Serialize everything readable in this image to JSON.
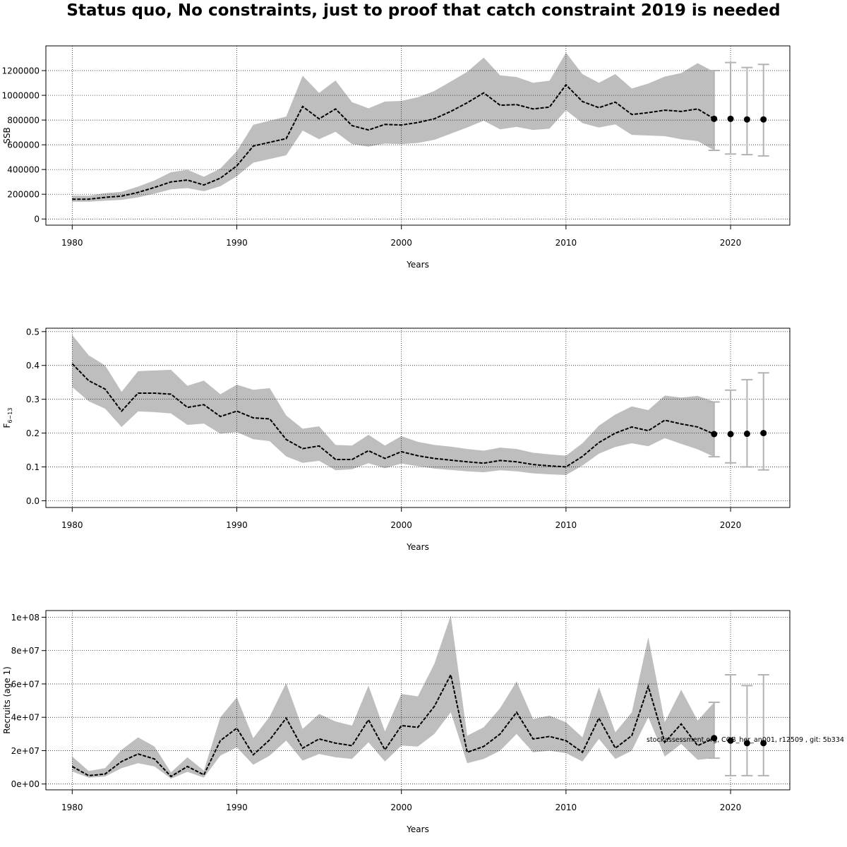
{
  "title": "Status quo, No constraints, just to proof that catch constraint 2019 is needed",
  "colors": {
    "band": "#bebebe",
    "line": "#000000",
    "grid": "#000000",
    "errorbar": "#b3b3b3",
    "point": "#000000"
  },
  "footnote": "stockassessment.org, COB_her_an001, r12509 , git: 5b334",
  "chart_data": [
    {
      "type": "line",
      "xlabel": "Years",
      "ylabel": "SSB",
      "xlim": [
        1978.4,
        2023.6
      ],
      "ylim": [
        -50000,
        1400000
      ],
      "xticks": [
        1980,
        1990,
        2000,
        2010,
        2020
      ],
      "yticks": [
        0,
        200000,
        400000,
        600000,
        800000,
        1000000,
        1200000
      ],
      "ytick_labels": [
        "0",
        "200000",
        "400000",
        "600000",
        "800000",
        "1000000",
        "1200000"
      ],
      "grid": true,
      "x": [
        1980,
        1981,
        1982,
        1983,
        1984,
        1985,
        1986,
        1987,
        1988,
        1989,
        1990,
        1991,
        1992,
        1993,
        1994,
        1995,
        1996,
        1997,
        1998,
        1999,
        2000,
        2001,
        2002,
        2003,
        2004,
        2005,
        2006,
        2007,
        2008,
        2009,
        2010,
        2011,
        2012,
        2013,
        2014,
        2015,
        2016,
        2017,
        2018,
        2019
      ],
      "estimate": [
        160000,
        160000,
        175000,
        185000,
        215000,
        255000,
        300000,
        315000,
        275000,
        330000,
        430000,
        590000,
        620000,
        650000,
        910000,
        810000,
        890000,
        755000,
        720000,
        765000,
        760000,
        780000,
        810000,
        870000,
        940000,
        1020000,
        920000,
        925000,
        890000,
        905000,
        1085000,
        950000,
        900000,
        945000,
        845000,
        860000,
        880000,
        870000,
        890000,
        810000
      ],
      "lower": [
        140000,
        140000,
        148000,
        155000,
        175000,
        205000,
        240000,
        250000,
        225000,
        265000,
        345000,
        455000,
        485000,
        515000,
        715000,
        645000,
        705000,
        605000,
        585000,
        610000,
        605000,
        615000,
        640000,
        690000,
        740000,
        795000,
        725000,
        745000,
        720000,
        730000,
        880000,
        775000,
        740000,
        765000,
        680000,
        675000,
        670000,
        645000,
        630000,
        555000
      ],
      "upper": [
        188000,
        188000,
        208000,
        220000,
        262000,
        312000,
        378000,
        398000,
        342000,
        408000,
        548000,
        762000,
        795000,
        828000,
        1158000,
        1020000,
        1120000,
        945000,
        895000,
        950000,
        955000,
        985000,
        1035000,
        1112000,
        1190000,
        1305000,
        1162000,
        1148000,
        1102000,
        1118000,
        1345000,
        1172000,
        1102000,
        1172000,
        1055000,
        1095000,
        1152000,
        1180000,
        1260000,
        1190000
      ],
      "forecast": {
        "x": [
          2019,
          2020,
          2021,
          2022
        ],
        "median": [
          810000,
          810000,
          805000,
          805000
        ],
        "lower": [
          555000,
          525000,
          520000,
          510000
        ],
        "upper": [
          1200000,
          1265000,
          1225000,
          1250000
        ]
      }
    },
    {
      "type": "line",
      "xlabel": "Years",
      "ylabel": "F",
      "ylabel_sub": "6−13",
      "xlim": [
        1978.4,
        2023.6
      ],
      "ylim": [
        -0.02,
        0.51
      ],
      "xticks": [
        1980,
        1990,
        2000,
        2010,
        2020
      ],
      "yticks": [
        0,
        0.1,
        0.2,
        0.3,
        0.4,
        0.5
      ],
      "ytick_labels": [
        "0.0",
        "0.1",
        "0.2",
        "0.3",
        "0.4",
        "0.5"
      ],
      "grid": true,
      "x": [
        1980,
        1981,
        1982,
        1983,
        1984,
        1985,
        1986,
        1987,
        1988,
        1989,
        1990,
        1991,
        1992,
        1993,
        1994,
        1995,
        1996,
        1997,
        1998,
        1999,
        2000,
        2001,
        2002,
        2003,
        2004,
        2005,
        2006,
        2007,
        2008,
        2009,
        2010,
        2011,
        2012,
        2013,
        2014,
        2015,
        2016,
        2017,
        2018,
        2019
      ],
      "estimate": [
        0.405,
        0.355,
        0.33,
        0.265,
        0.318,
        0.318,
        0.315,
        0.276,
        0.284,
        0.249,
        0.265,
        0.245,
        0.242,
        0.181,
        0.154,
        0.162,
        0.122,
        0.122,
        0.148,
        0.125,
        0.145,
        0.133,
        0.125,
        0.12,
        0.115,
        0.111,
        0.119,
        0.115,
        0.107,
        0.103,
        0.1,
        0.131,
        0.172,
        0.2,
        0.218,
        0.207,
        0.238,
        0.227,
        0.218,
        0.197
      ],
      "lower": [
        0.336,
        0.294,
        0.272,
        0.218,
        0.264,
        0.262,
        0.258,
        0.224,
        0.228,
        0.198,
        0.203,
        0.182,
        0.176,
        0.131,
        0.112,
        0.118,
        0.09,
        0.093,
        0.111,
        0.096,
        0.11,
        0.102,
        0.095,
        0.091,
        0.087,
        0.084,
        0.09,
        0.087,
        0.081,
        0.078,
        0.076,
        0.104,
        0.139,
        0.159,
        0.17,
        0.161,
        0.185,
        0.168,
        0.152,
        0.13
      ],
      "upper": [
        0.49,
        0.43,
        0.4,
        0.322,
        0.383,
        0.385,
        0.387,
        0.34,
        0.355,
        0.315,
        0.343,
        0.328,
        0.333,
        0.252,
        0.213,
        0.22,
        0.165,
        0.163,
        0.195,
        0.163,
        0.191,
        0.174,
        0.165,
        0.16,
        0.153,
        0.148,
        0.157,
        0.153,
        0.142,
        0.137,
        0.133,
        0.17,
        0.222,
        0.255,
        0.279,
        0.268,
        0.311,
        0.305,
        0.31,
        0.293
      ],
      "forecast": {
        "x": [
          2019,
          2020,
          2021,
          2022
        ],
        "median": [
          0.197,
          0.197,
          0.198,
          0.2
        ],
        "lower": [
          0.13,
          0.112,
          0.1,
          0.091
        ],
        "upper": [
          0.292,
          0.327,
          0.358,
          0.378
        ]
      }
    },
    {
      "type": "line",
      "xlabel": "Years",
      "ylabel": "Recruits (age 1)",
      "xlim": [
        1978.4,
        2023.6
      ],
      "ylim": [
        -3500000,
        104000000
      ],
      "xticks": [
        1980,
        1990,
        2000,
        2010,
        2020
      ],
      "yticks": [
        0,
        20000000,
        40000000,
        60000000,
        80000000,
        100000000
      ],
      "ytick_labels": [
        "0e+00",
        "2e+07",
        "4e+07",
        "6e+07",
        "8e+07",
        "1e+08"
      ],
      "grid": true,
      "x": [
        1980,
        1981,
        1982,
        1983,
        1984,
        1985,
        1986,
        1987,
        1988,
        1989,
        1990,
        1991,
        1992,
        1993,
        1994,
        1995,
        1996,
        1997,
        1998,
        1999,
        2000,
        2001,
        2002,
        2003,
        2004,
        2005,
        2006,
        2007,
        2008,
        2009,
        2010,
        2011,
        2012,
        2013,
        2014,
        2015,
        2016,
        2017,
        2018,
        2019
      ],
      "estimate": [
        10500000,
        5000000,
        6000000,
        13500000,
        18000000,
        15000000,
        4500000,
        10500000,
        5500000,
        26000000,
        33500000,
        17500000,
        26500000,
        39500000,
        21500000,
        27000000,
        24500000,
        23000000,
        38500000,
        20500000,
        35000000,
        34000000,
        46500000,
        65500000,
        19000000,
        22500000,
        30000000,
        43000000,
        27000000,
        28500000,
        26000000,
        19000000,
        39500000,
        21500000,
        29000000,
        58500000,
        25000000,
        36000000,
        23000000,
        27500000
      ],
      "lower": [
        7500000,
        3800000,
        4500000,
        9500000,
        12500000,
        10500000,
        3200000,
        7300000,
        3800000,
        17000000,
        22000000,
        11500000,
        17000000,
        26000000,
        14000000,
        18000000,
        16000000,
        15000000,
        25000000,
        13500000,
        23000000,
        22500000,
        30000000,
        43000000,
        12500000,
        15000000,
        20000000,
        30000000,
        19000000,
        20000000,
        18500000,
        13500000,
        27000000,
        15000000,
        20000000,
        40000000,
        16500000,
        24000000,
        14500000,
        15500000
      ],
      "upper": [
        16500000,
        7800000,
        9500000,
        20500000,
        28000000,
        22500000,
        7000000,
        16000000,
        8000000,
        40000000,
        52000000,
        27500000,
        40500000,
        60500000,
        33000000,
        42000000,
        37500000,
        35000000,
        59000000,
        31500000,
        54000000,
        52500000,
        72000000,
        101000000,
        29000000,
        34000000,
        45500000,
        61500000,
        39000000,
        41000000,
        37000000,
        28000000,
        58000000,
        31000000,
        43000000,
        88000000,
        37000000,
        56500000,
        38000000,
        49000000
      ],
      "forecast": {
        "x": [
          2019,
          2020,
          2021,
          2022
        ],
        "median": [
          27500000,
          26000000,
          24500000,
          24500000
        ],
        "lower": [
          15500000,
          5000000,
          5000000,
          5000000
        ],
        "upper": [
          49000000,
          65500000,
          59000000,
          65500000
        ]
      }
    }
  ]
}
